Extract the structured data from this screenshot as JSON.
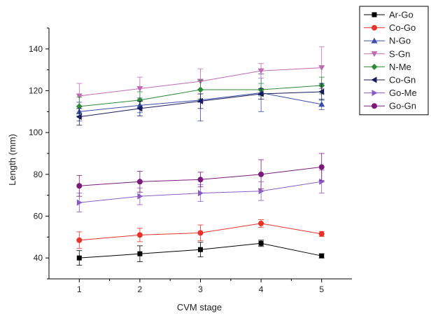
{
  "chart_data": {
    "type": "line",
    "xlabel": "CVM stage",
    "ylabel": "Length (mm)",
    "x": [
      1,
      2,
      3,
      4,
      5
    ],
    "xlim": [
      0.5,
      5.5
    ],
    "ylim": [
      30,
      150
    ],
    "yticks": [
      40,
      60,
      80,
      100,
      120,
      140
    ],
    "grid": false,
    "legend_position": "top-right",
    "series": [
      {
        "name": "Ar-Go",
        "color": "#000000",
        "marker": "square",
        "values": [
          40,
          42,
          44,
          47,
          41
        ],
        "errors": [
          3.5,
          3.8,
          3.5,
          1.5,
          1.0
        ]
      },
      {
        "name": "Co-Go",
        "color": "#e8322a",
        "marker": "circle",
        "values": [
          48.5,
          51,
          52,
          56.5,
          51.5
        ],
        "errors": [
          4.0,
          3.2,
          3.8,
          1.8,
          1.2
        ]
      },
      {
        "name": "N-Go",
        "color": "#3b4ea8",
        "marker": "triangle-up",
        "values": [
          110,
          113,
          115.5,
          119,
          113.5
        ],
        "errors": [
          4.5,
          3.5,
          10,
          9.0,
          2.5
        ]
      },
      {
        "name": "S-Gn",
        "color": "#c06ab4",
        "marker": "triangle-down",
        "values": [
          117.5,
          121,
          124.5,
          129.5,
          131
        ],
        "errors": [
          6.0,
          5.5,
          6.0,
          3.5,
          10
        ]
      },
      {
        "name": "N-Me",
        "color": "#2e8b3a",
        "marker": "diamond",
        "values": [
          112.5,
          115.5,
          120.5,
          120.5,
          122.5
        ],
        "errors": [
          4.5,
          4.0,
          4.5,
          3.0,
          4.0
        ]
      },
      {
        "name": "Co-Gn",
        "color": "#1a1a5e",
        "marker": "triangle-left",
        "values": [
          107.5,
          111.5,
          115,
          118.5,
          119.5
        ],
        "errors": [
          4.0,
          3.5,
          3.5,
          2.5,
          4.0
        ]
      },
      {
        "name": "Go-Me",
        "color": "#8a5bc4",
        "marker": "triangle-right",
        "values": [
          66.5,
          69.5,
          71,
          72,
          76.5
        ],
        "errors": [
          4.5,
          4.0,
          4.0,
          4.5,
          5.5
        ]
      },
      {
        "name": "Go-Gn",
        "color": "#7a1a7a",
        "marker": "circle",
        "values": [
          74.5,
          76.5,
          77.5,
          80,
          83.5
        ],
        "errors": [
          5.0,
          5.0,
          3.5,
          7.0,
          6.5
        ]
      }
    ]
  }
}
